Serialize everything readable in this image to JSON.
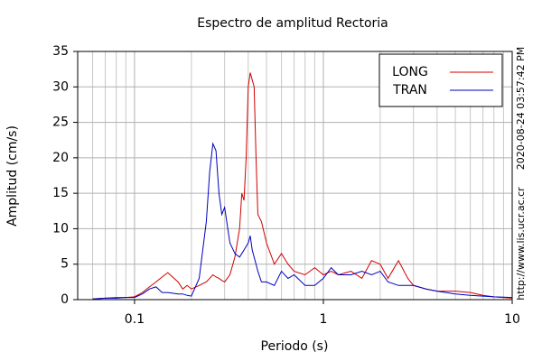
{
  "chart_data": {
    "type": "line",
    "title": "Espectro de amplitud Rectoria",
    "xlabel": "Periodo (s)",
    "ylabel": "Amplitud (cm/s)",
    "annotations": [
      "2020-08-24 03:57:42 PM",
      "http://www.lis.ucr.ac.cr"
    ],
    "xscale": "log",
    "grid": true,
    "legend": "upper right",
    "xlim": [
      0.05,
      10
    ],
    "ylim": [
      0,
      35
    ],
    "xticks": [
      0.1,
      1,
      10
    ],
    "xminorticks": [
      0.06,
      0.07,
      0.08,
      0.09,
      0.2,
      0.3,
      0.4,
      0.5,
      0.6,
      0.7,
      0.8,
      0.9,
      2,
      3,
      4,
      5,
      6,
      7,
      8,
      9
    ],
    "yticks": [
      0,
      5,
      10,
      15,
      20,
      25,
      30,
      35
    ],
    "x": [
      0.06,
      0.07,
      0.08,
      0.09,
      0.1,
      0.11,
      0.12,
      0.13,
      0.14,
      0.15,
      0.17,
      0.18,
      0.19,
      0.2,
      0.22,
      0.24,
      0.25,
      0.26,
      0.27,
      0.28,
      0.29,
      0.3,
      0.32,
      0.34,
      0.36,
      0.37,
      0.38,
      0.39,
      0.4,
      0.41,
      0.42,
      0.43,
      0.44,
      0.45,
      0.47,
      0.5,
      0.55,
      0.6,
      0.65,
      0.7,
      0.8,
      0.9,
      1,
      1.1,
      1.2,
      1.4,
      1.6,
      1.8,
      2,
      2.2,
      2.5,
      2.8,
      3,
      3.5,
      4,
      5,
      6,
      7,
      8,
      10
    ],
    "series": [
      {
        "name": "LONG",
        "color": "#d00000",
        "values": [
          0.1,
          0.2,
          0.3,
          0.3,
          0.4,
          1.0,
          1.8,
          2.5,
          3.2,
          3.8,
          2.5,
          1.5,
          2.0,
          1.5,
          2.0,
          2.5,
          3.0,
          3.5,
          3.2,
          3.0,
          2.7,
          2.5,
          3.5,
          6,
          10,
          15,
          14,
          20,
          30,
          32,
          31,
          30,
          20,
          12,
          11,
          8,
          5,
          6.5,
          5,
          4,
          3.5,
          4.5,
          3.5,
          4,
          3.5,
          4,
          3,
          5.5,
          5,
          3,
          5.5,
          3,
          2,
          1.5,
          1.2,
          1.2,
          1.0,
          0.6,
          0.4,
          0.2
        ]
      },
      {
        "name": "TRAN",
        "color": "#0000c0",
        "values": [
          0.1,
          0.2,
          0.2,
          0.3,
          0.3,
          0.8,
          1.5,
          1.8,
          1.0,
          1.0,
          0.8,
          0.8,
          0.6,
          0.5,
          3,
          11,
          18,
          22,
          21,
          15,
          12,
          13,
          8,
          6.5,
          6,
          6.5,
          7,
          7.5,
          8,
          9,
          7,
          6,
          5,
          4,
          2.5,
          2.5,
          2,
          4,
          3,
          3.5,
          2,
          2,
          3,
          4.5,
          3.5,
          3.5,
          4,
          3.5,
          4,
          2.5,
          2,
          2,
          2,
          1.5,
          1.2,
          0.8,
          0.6,
          0.5,
          0.4,
          0.3
        ]
      }
    ]
  }
}
